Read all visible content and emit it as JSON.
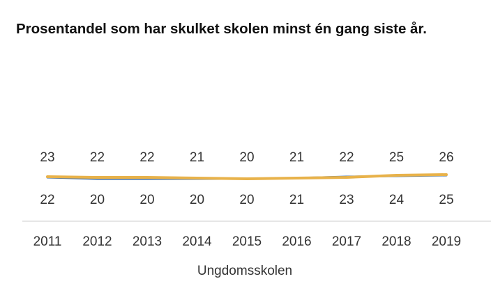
{
  "title": "Prosentandel som har skulket skolen minst én gang siste år.",
  "chart_data": {
    "type": "line",
    "title": "Prosentandel som har skulket skolen minst én gang siste år.",
    "xlabel": "Ungdomsskolen",
    "ylabel": "",
    "categories": [
      "2011",
      "2012",
      "2013",
      "2014",
      "2015",
      "2016",
      "2017",
      "2018",
      "2019"
    ],
    "series": [
      {
        "name": "",
        "color": "#e8b24a",
        "values": [
          23,
          22,
          22,
          21,
          20,
          21,
          22,
          25,
          26
        ]
      },
      {
        "name": "",
        "color": "#3f6fa8",
        "values": [
          22,
          20,
          20,
          20,
          20,
          21,
          23,
          24,
          25
        ]
      }
    ],
    "grid": false,
    "legend": "none"
  }
}
